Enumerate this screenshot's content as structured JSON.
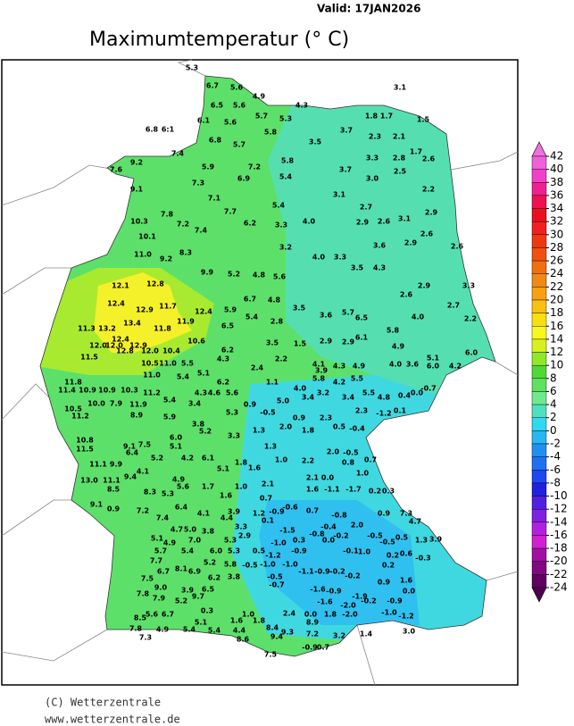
{
  "header": {
    "valid": "Valid: 17JAN2026",
    "title": "Maximumtemperatur (° C)"
  },
  "colorbar": {
    "levels": [
      42,
      40,
      38,
      36,
      34,
      32,
      30,
      28,
      26,
      24,
      22,
      20,
      18,
      16,
      14,
      12,
      10,
      8,
      6,
      4,
      2,
      0,
      -2,
      -4,
      -6,
      -8,
      -10,
      -12,
      -14,
      -16,
      -18,
      -20,
      -22,
      -24
    ],
    "colors": [
      "#f070e0",
      "#f060d8",
      "#f040c8",
      "#f02090",
      "#f01050",
      "#e81020",
      "#f02020",
      "#f03810",
      "#f05010",
      "#f07010",
      "#f08818",
      "#f8a010",
      "#f8c010",
      "#f8e010",
      "#f8f820",
      "#d8f020",
      "#90e828",
      "#50d838",
      "#60e060",
      "#70e890",
      "#50e0c0",
      "#30d8f0",
      "#28b8f0",
      "#2090f0",
      "#2070f0",
      "#2048f0",
      "#2020e0",
      "#5020e0",
      "#8020e0",
      "#b020e0",
      "#d020d0",
      "#a010a0",
      "#800880",
      "#600060",
      "#500050"
    ]
  },
  "stations": [
    "5.3",
    "6.7",
    "5.6",
    "4.9",
    "6.5",
    "5.6",
    "4.3",
    "3.1",
    "6.1",
    "5.6",
    "5.7",
    "5.3",
    "1.8",
    "1.7",
    "1.5",
    "6.8",
    "5.7",
    "5.8",
    "3.7",
    "2.3",
    "2.1",
    "1.7",
    "3.5",
    "6.8",
    "6:1",
    "7.4",
    "7.6",
    "9.2",
    "5.9",
    "7.2",
    "5.8",
    "3.7",
    "3.3",
    "2.8",
    "2.6",
    "9.1",
    "7.3",
    "6.9",
    "5.4",
    "3.0",
    "2.5",
    "10.3",
    "7.8",
    "7.2",
    "7.1",
    "7.7",
    "5.4",
    "3.1",
    "2.7",
    "2.2",
    "10.1",
    "7.4",
    "6.2",
    "3.3",
    "4.0",
    "2.9",
    "2.6",
    "3.1",
    "2.9",
    "11.0",
    "9.2",
    "8.3",
    "3.2",
    "3.6",
    "2.9",
    "2.6",
    "2.6",
    "12.1",
    "12.8",
    "9.9",
    "5.2",
    "4.8",
    "5.6",
    "4.0",
    "3.3",
    "3.5",
    "4.3",
    "2.9",
    "3.3",
    "12.4",
    "12.9",
    "11.7",
    "12.4",
    "5.9",
    "6.7",
    "4.8",
    "3.5",
    "3.6",
    "5.7",
    "6.5",
    "2.6",
    "2.7",
    "11.3",
    "13.2",
    "13.4",
    "12.4",
    "11.8",
    "11.9",
    "6.5",
    "5.4",
    "2.8",
    "4.0",
    "2.2",
    "12.0",
    "12.0",
    "12.9",
    "12.8",
    "12.0",
    "10.4",
    "10.6",
    "6.2",
    "3.5",
    "1.5",
    "2.9",
    "2.9",
    "6.1",
    "5.8",
    "4.9",
    "11.5",
    "10.5",
    "11.0",
    "5.5",
    "4.3",
    "2.4",
    "2.2",
    "4.1",
    "4.0",
    "3.6",
    "5.1",
    "6.0",
    "11.8",
    "11.0",
    "5.4",
    "5.1",
    "6.2",
    "1.1",
    "3.9",
    "4.3",
    "4.9",
    "6.0",
    "4.2",
    "11.4",
    "10.9",
    "10.9",
    "10.3",
    "11.2",
    "4.3",
    "4.6",
    "5.6",
    "4.0",
    "5.8",
    "4.2",
    "5.5",
    "0.4",
    "0.0",
    "-0.7",
    "10.5",
    "10.0",
    "7.9",
    "11.9",
    "5.4",
    "3.4",
    "0.9",
    "5.0",
    "3.4",
    "3.2",
    "3.4",
    "5.5",
    "4.8",
    "11.2",
    "8.9",
    "5.9",
    "5.3",
    "-0.5",
    "0.9",
    "2.3",
    "2.3",
    "-1.2",
    "0.1",
    "3.8",
    "2.0",
    "0.5",
    "-0.4",
    "10.8",
    "6.0",
    "5.2",
    "3.3",
    "1.3",
    "1.8",
    "9.1",
    "7.5",
    "5.1",
    "4.2",
    "6.1",
    "1.3",
    "2.0",
    "-0.5",
    "11.5",
    "6.4",
    "5.2",
    "1.8",
    "1.0",
    "2.2",
    "0.8",
    "0.7",
    "11.1",
    "9.9",
    "9.4",
    "4.1",
    "4.9",
    "5.1",
    "1.6",
    "2.1",
    "0.0",
    "1.0",
    "13.0",
    "11.1",
    "5.6",
    "1.7",
    "1.0",
    "2.1",
    "1.6",
    "-1.1",
    "-1.7",
    "0.2",
    "0.3",
    "8.5",
    "8.3",
    "5.3",
    "1.6",
    "0.7",
    "9.1",
    "0.9",
    "7.2",
    "6.4",
    "4.1",
    "3.9",
    "1.2",
    "-0.9",
    "-0.6",
    "0.7",
    "-0.8",
    "0.9",
    "7.3",
    "7.4",
    "4.4",
    "3.3",
    "0.1",
    "-0.4",
    "2.0",
    "4.7",
    "4.7",
    "5.0",
    "3.8",
    "2.9",
    "-1.5",
    "-0.8",
    "-0.2",
    "-0.5",
    "-0.5",
    "0.5",
    "5.1",
    "4.9",
    "7.0",
    "5.3",
    "-1.0",
    "0.3",
    "0.0",
    "1.3",
    "3.9",
    "5.7",
    "5.4",
    "6.0",
    "5.3",
    "0.5",
    "-1.2",
    "-0.9",
    "-0.1",
    "1.0",
    "0.2",
    "0.6",
    "-0.3",
    "7.7",
    "5.2",
    "5.8",
    "-0.5",
    "-1.0",
    "-1.0",
    "8.1",
    "6.7",
    "6.9",
    "-1.1",
    "-0.9",
    "-0.2",
    "-0.2",
    "0.2",
    "6.2",
    "3.8",
    "-0.5",
    "-0.7",
    "7.5",
    "9.0",
    "3.9",
    "6.5",
    "-1.6",
    "-0.9",
    "-1.9",
    "1.6",
    "0.9",
    "0.0",
    "7.8",
    "7.9",
    "9.7",
    "5.2",
    "-1.6",
    "-2.0",
    "-0.2",
    "-0.9",
    "5.6",
    "6.7",
    "0.3",
    "1.0",
    "2.4",
    "0.0",
    "1.8",
    "-2.0",
    "-1.0",
    "-1.2",
    "8.5",
    "5.1",
    "1.6",
    "1.8",
    "8.9",
    "7.8",
    "4.9",
    "5.4",
    "5.4",
    "4.4",
    "8.4",
    "9.3",
    "3.0",
    "7.3",
    "8.6",
    "9.4",
    "7.2",
    "3.2",
    "1.4",
    "-0.9",
    "0.7",
    "7.5"
  ],
  "footer": {
    "copyright": "(C) Wetterzentrale",
    "url": "www.wetterzentrale.de"
  }
}
